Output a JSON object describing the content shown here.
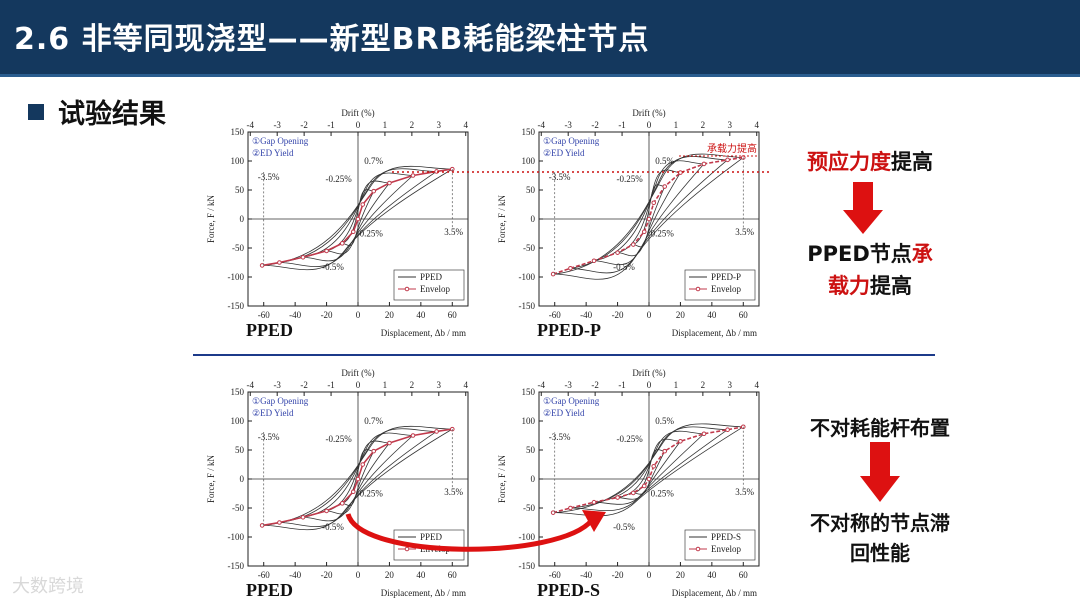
{
  "header": {
    "title": "2.6 非等同现浇型——新型BRB耗能梁柱节点"
  },
  "section": {
    "title": "试验结果"
  },
  "watermark": "大数跨境",
  "notes": {
    "a1": "预应力度",
    "a2": "提高",
    "b1": "PPED",
    "b2": "节点",
    "b3": "承",
    "b4": "载力",
    "b5": "提高",
    "c1": "不对耗能杆布置",
    "d1": "不对称的节点滞",
    "d2": "回性能"
  },
  "chart_data": [
    {
      "id": "tl",
      "type": "line",
      "name_label": "PPED",
      "xlabel": "Displacement, Δb / mm",
      "ylabel": "Force, F / kN",
      "x2label": "Drift (%)",
      "xlim": [
        -70,
        70
      ],
      "ylim": [
        -150,
        150
      ],
      "xticks": [
        "-60",
        "-40",
        "-20",
        "0",
        "20",
        "40",
        "60"
      ],
      "yticks": [
        "-150",
        "-100",
        "-50",
        "0",
        "50",
        "100",
        "150"
      ],
      "x2ticks": [
        "-4",
        "-3",
        "-2",
        "-1",
        "0",
        "1",
        "2",
        "3",
        "4"
      ],
      "legend": [
        {
          "label": "PPED",
          "style": "hyst"
        },
        {
          "label": "Envelop",
          "style": "env"
        }
      ],
      "annotations": {
        "gap": "①Gap Opening",
        "ed": "②ED Yield",
        "n35": "-3.5%",
        "n025": "-0.25%",
        "p07": "0.7%",
        "p025": "0.25%",
        "n05": "-0.5%",
        "p35": "3.5%"
      },
      "envelope": {
        "x": [
          -61,
          -50,
          -35,
          -20,
          -10,
          -3,
          0,
          3,
          10,
          20,
          35,
          50,
          60
        ],
        "y": [
          -80,
          -75,
          -66,
          -55,
          -42,
          -22,
          0,
          25,
          48,
          62,
          75,
          82,
          86
        ]
      },
      "loops": [
        {
          "a": 10,
          "pos": 48,
          "neg": -42
        },
        {
          "a": 20,
          "pos": 62,
          "neg": -55
        },
        {
          "a": 35,
          "pos": 75,
          "neg": -66
        },
        {
          "a": 50,
          "pos": 82,
          "neg": -75
        },
        {
          "a": 60,
          "pos": 86,
          "neg": -80
        }
      ]
    },
    {
      "id": "tr",
      "type": "line",
      "name_label": "PPED-P",
      "xlabel": "Displacement, Δb / mm",
      "ylabel": "Force, F / kN",
      "x2label": "Drift (%)",
      "xlim": [
        -70,
        70
      ],
      "ylim": [
        -150,
        150
      ],
      "xticks": [
        "-60",
        "-40",
        "-20",
        "0",
        "20",
        "40",
        "60"
      ],
      "yticks": [
        "-150",
        "-100",
        "-50",
        "0",
        "50",
        "100",
        "150"
      ],
      "x2ticks": [
        "-4",
        "-3",
        "-2",
        "-1",
        "0",
        "1",
        "2",
        "3",
        "4"
      ],
      "legend": [
        {
          "label": "PPED-P",
          "style": "hyst"
        },
        {
          "label": "Envelop",
          "style": "env"
        }
      ],
      "annotations": {
        "gap": "①Gap Opening",
        "ed": "②ED Yield",
        "n35": "-3.5%",
        "n025": "-0.25%",
        "p07": "0.5%",
        "p025": "0.25%",
        "n05": "-0.5%",
        "p35": "3.5%",
        "callout": "承载力提高"
      },
      "envelope": {
        "x": [
          -61,
          -50,
          -35,
          -20,
          -10,
          -3,
          0,
          3,
          10,
          20,
          35,
          50,
          60
        ],
        "y": [
          -95,
          -85,
          -72,
          -58,
          -44,
          -22,
          0,
          28,
          56,
          80,
          95,
          102,
          106
        ]
      },
      "loops": [
        {
          "a": 10,
          "pos": 56,
          "neg": -44
        },
        {
          "a": 20,
          "pos": 80,
          "neg": -58
        },
        {
          "a": 35,
          "pos": 95,
          "neg": -72
        },
        {
          "a": 50,
          "pos": 102,
          "neg": -85
        },
        {
          "a": 60,
          "pos": 106,
          "neg": -95
        }
      ]
    },
    {
      "id": "bl",
      "type": "line",
      "name_label": "PPED",
      "xlabel": "Displacement, Δb / mm",
      "ylabel": "Force, F / kN",
      "x2label": "Drift (%)",
      "xlim": [
        -70,
        70
      ],
      "ylim": [
        -150,
        150
      ],
      "xticks": [
        "-60",
        "-40",
        "-20",
        "0",
        "20",
        "40",
        "60"
      ],
      "yticks": [
        "-150",
        "-100",
        "-50",
        "0",
        "50",
        "100",
        "150"
      ],
      "x2ticks": [
        "-4",
        "-3",
        "-2",
        "-1",
        "0",
        "1",
        "2",
        "3",
        "4"
      ],
      "legend": [
        {
          "label": "PPED",
          "style": "hyst"
        },
        {
          "label": "Envelop",
          "style": "env"
        }
      ],
      "annotations": {
        "gap": "①Gap Opening",
        "ed": "②ED Yield",
        "n35": "-3.5%",
        "n025": "-0.25%",
        "p07": "0.7%",
        "p025": "0.25%",
        "n05": "-0.5%",
        "p35": "3.5%"
      },
      "envelope": {
        "x": [
          -61,
          -50,
          -35,
          -20,
          -10,
          -3,
          0,
          3,
          10,
          20,
          35,
          50,
          60
        ],
        "y": [
          -80,
          -75,
          -66,
          -55,
          -42,
          -22,
          0,
          25,
          48,
          62,
          75,
          82,
          86
        ]
      },
      "loops": [
        {
          "a": 10,
          "pos": 48,
          "neg": -42
        },
        {
          "a": 20,
          "pos": 62,
          "neg": -55
        },
        {
          "a": 35,
          "pos": 75,
          "neg": -66
        },
        {
          "a": 50,
          "pos": 82,
          "neg": -75
        },
        {
          "a": 60,
          "pos": 86,
          "neg": -80
        }
      ]
    },
    {
      "id": "br",
      "type": "line",
      "name_label": "PPED-S",
      "xlabel": "Displacement, Δb / mm",
      "ylabel": "Force, F / kN",
      "x2label": "Drift (%)",
      "xlim": [
        -70,
        70
      ],
      "ylim": [
        -150,
        150
      ],
      "xticks": [
        "-60",
        "-40",
        "-20",
        "0",
        "20",
        "40",
        "60"
      ],
      "yticks": [
        "-150",
        "-100",
        "-50",
        "0",
        "50",
        "100",
        "150"
      ],
      "x2ticks": [
        "-4",
        "-3",
        "-2",
        "-1",
        "0",
        "1",
        "2",
        "3",
        "4"
      ],
      "legend": [
        {
          "label": "PPED-S",
          "style": "hyst"
        },
        {
          "label": "Envelop",
          "style": "env"
        }
      ],
      "annotations": {
        "gap": "①Gap Opening",
        "ed": "②ED Yield",
        "n35": "-3.5%",
        "n025": "-0.25%",
        "p07": "0.5%",
        "p025": "0.25%",
        "n05": "-0.5%",
        "p35": "3.5%"
      },
      "envelope": {
        "x": [
          -61,
          -50,
          -35,
          -20,
          -10,
          -3,
          0,
          3,
          10,
          20,
          35,
          50,
          60
        ],
        "y": [
          -58,
          -50,
          -40,
          -32,
          -24,
          -12,
          0,
          22,
          48,
          65,
          78,
          85,
          90
        ]
      },
      "loops": [
        {
          "a": 10,
          "pos": 48,
          "neg": -24
        },
        {
          "a": 20,
          "pos": 65,
          "neg": -32
        },
        {
          "a": 35,
          "pos": 78,
          "neg": -40
        },
        {
          "a": 50,
          "pos": 85,
          "neg": -50
        },
        {
          "a": 60,
          "pos": 90,
          "neg": -58
        }
      ]
    }
  ],
  "colors": {
    "header": "#14385e",
    "accent_red": "#cc1111",
    "envelope": "#c0394b",
    "arrow": "#dd1111",
    "divider": "#1c3a8a"
  }
}
